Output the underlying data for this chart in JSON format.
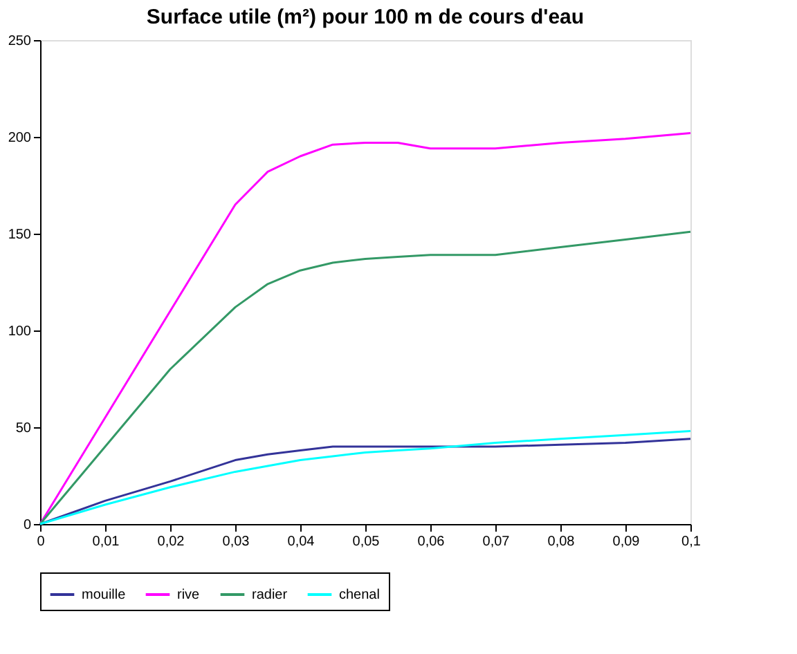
{
  "chart_data": {
    "type": "line",
    "title": "Surface utile (m²) pour 100 m de cours d'eau",
    "x": [
      0,
      0.01,
      0.02,
      0.03,
      0.035,
      0.04,
      0.045,
      0.05,
      0.055,
      0.06,
      0.07,
      0.08,
      0.09,
      0.1
    ],
    "series": [
      {
        "name": "mouille",
        "color": "#333399",
        "values": [
          0,
          12,
          22,
          33,
          36,
          38,
          40,
          40,
          40,
          40,
          40,
          41,
          42,
          44
        ]
      },
      {
        "name": "rive",
        "color": "#ff00ff",
        "values": [
          0,
          55,
          110,
          165,
          182,
          190,
          196,
          197,
          197,
          194,
          194,
          197,
          199,
          202
        ]
      },
      {
        "name": "radier",
        "color": "#339966",
        "values": [
          0,
          40,
          80,
          112,
          124,
          131,
          135,
          137,
          138,
          139,
          139,
          143,
          147,
          151
        ]
      },
      {
        "name": "chenal",
        "color": "#00ffff",
        "values": [
          0,
          10,
          19,
          27,
          30,
          33,
          35,
          37,
          38,
          39,
          42,
          44,
          46,
          48
        ]
      }
    ],
    "xlim": [
      0,
      0.1
    ],
    "xticks": [
      0,
      {
        "value": 0.01,
        "label": "0,01"
      },
      {
        "value": 0.02,
        "label": "0,02"
      },
      {
        "value": 0.03,
        "label": "0,03"
      },
      {
        "value": 0.04,
        "label": "0,04"
      },
      {
        "value": 0.05,
        "label": "0,05"
      },
      {
        "value": 0.06,
        "label": "0,06"
      },
      {
        "value": 0.07,
        "label": "0,07"
      },
      {
        "value": 0.08,
        "label": "0,08"
      },
      {
        "value": 0.09,
        "label": "0,09"
      },
      {
        "value": 0.1,
        "label": "0,1"
      }
    ],
    "ylim": [
      0,
      250
    ],
    "yticks": [
      0,
      50,
      100,
      150,
      200,
      250
    ],
    "grid": false,
    "legend": "bottom",
    "marker": "none",
    "line_style": "solid"
  }
}
